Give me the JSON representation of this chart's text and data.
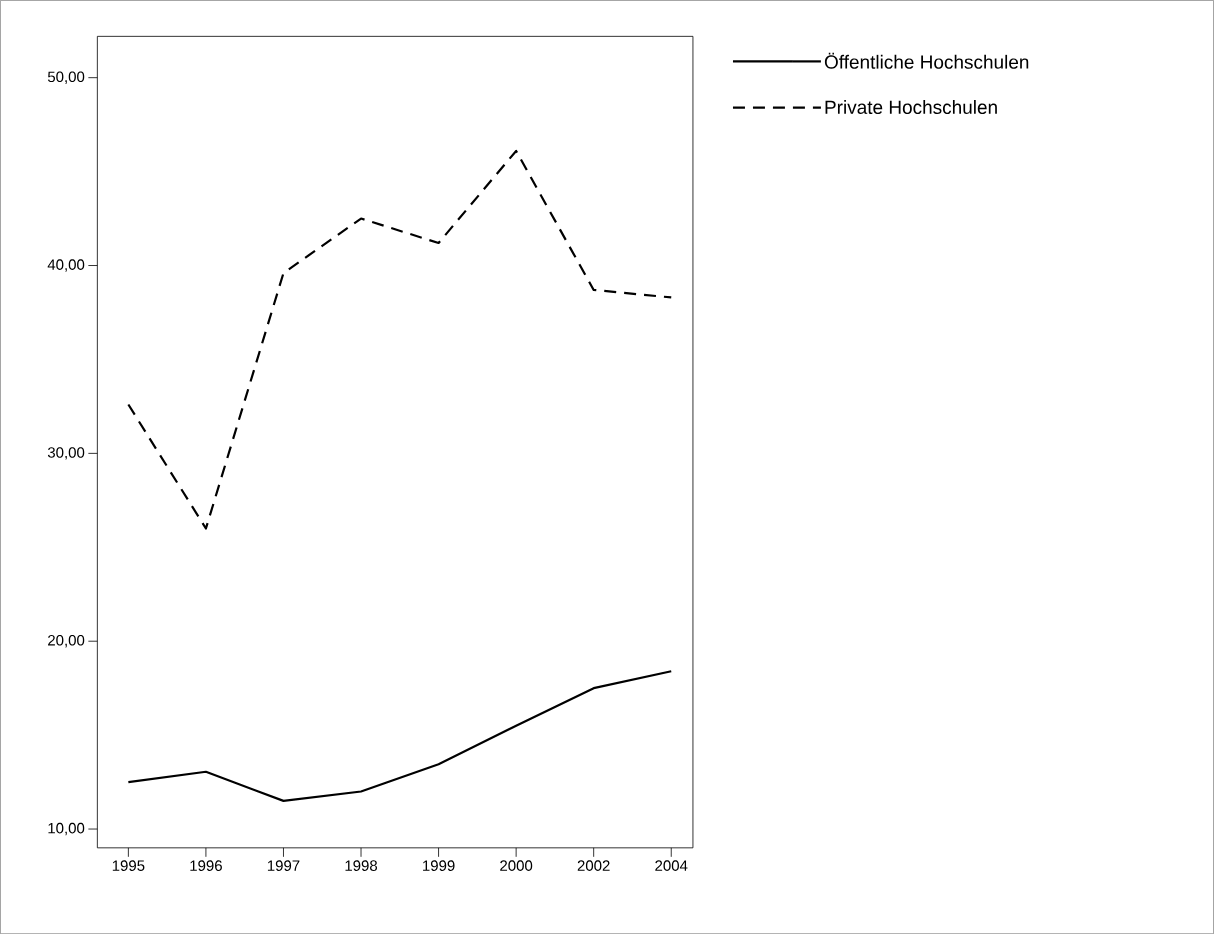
{
  "chart_data": {
    "type": "line",
    "categories": [
      "1995",
      "1996",
      "1997",
      "1998",
      "1999",
      "2000",
      "2002",
      "2004"
    ],
    "series": [
      {
        "name": "Öffentliche Hochschulen",
        "color": "#000000",
        "line_style": "solid",
        "values": [
          12.5,
          13.05,
          11.5,
          12.0,
          13.45,
          15.5,
          17.5,
          18.4
        ]
      },
      {
        "name": "Private Hochschulen",
        "color": "#000000",
        "line_style": "dashed",
        "values": [
          32.6,
          26.0,
          39.6,
          42.5,
          41.2,
          46.1,
          38.7,
          38.3
        ]
      }
    ],
    "ylim": [
      9.0,
      52.2
    ],
    "yticks": [
      {
        "value": 10,
        "label": "10,00"
      },
      {
        "value": 20,
        "label": "20,00"
      },
      {
        "value": 30,
        "label": "30,00"
      },
      {
        "value": 40,
        "label": "40,00"
      },
      {
        "value": 50,
        "label": "50,00"
      }
    ],
    "grid": false,
    "legend": "top right",
    "marker": "none"
  }
}
